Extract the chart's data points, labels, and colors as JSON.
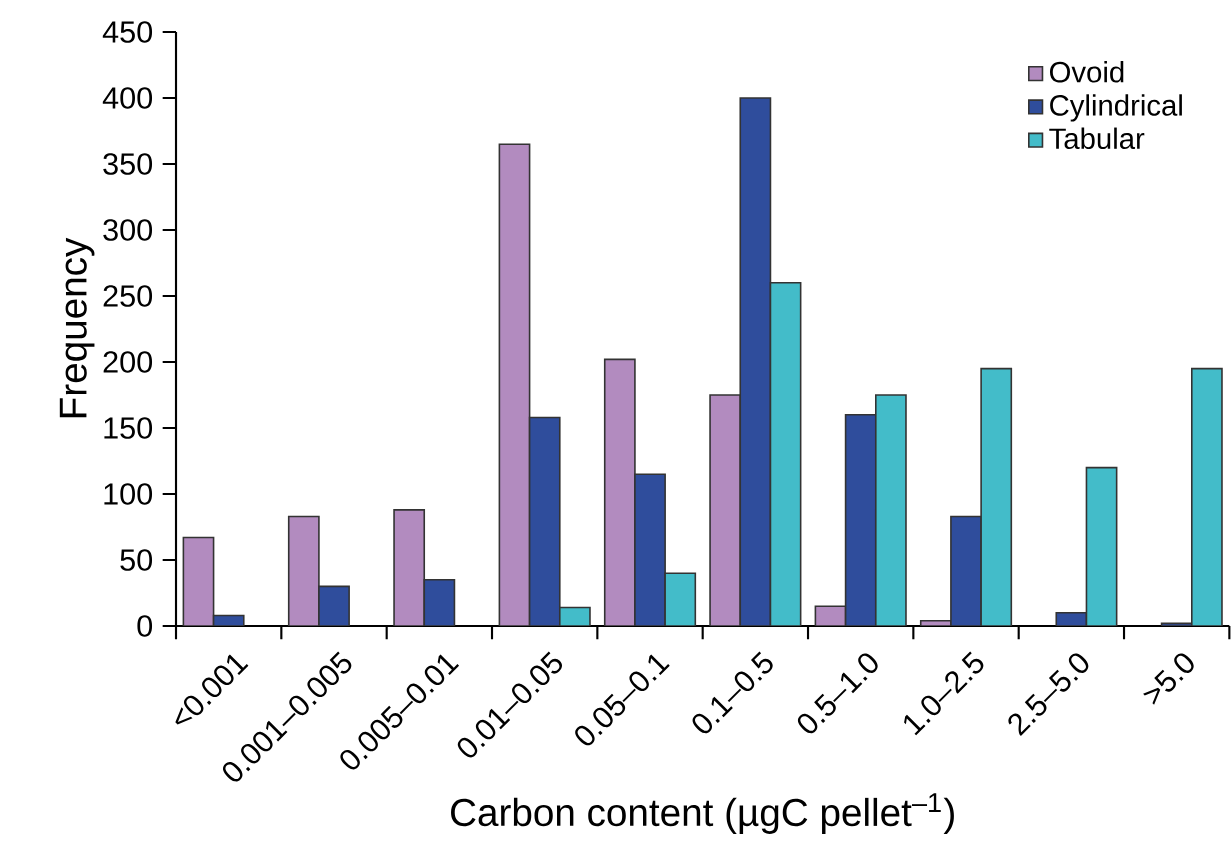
{
  "chart_data": {
    "type": "bar",
    "xlabel": "Carbon content (µgC pellet$^{–1}$)",
    "ylabel": "Frequency",
    "categories": [
      "<0.001",
      "0.001–0.005",
      "0.005–0.01",
      "0.01–0.05",
      "0.05–0.1",
      "0.1–0.5",
      "0.5–1.0",
      "1.0–2.5",
      "2.5–5.0",
      ">5.0"
    ],
    "series": [
      {
        "name": "Ovoid",
        "color": "#b28bbf",
        "values": [
          67,
          83,
          88,
          365,
          202,
          175,
          15,
          4,
          null,
          null
        ]
      },
      {
        "name": "Cylindrical",
        "color": "#2f4d9c",
        "values": [
          8,
          30,
          35,
          158,
          115,
          400,
          160,
          83,
          10,
          2
        ]
      },
      {
        "name": "Tabular",
        "color": "#43bcc9",
        "values": [
          null,
          null,
          null,
          14,
          40,
          260,
          175,
          195,
          120,
          195
        ]
      }
    ],
    "ylim": [
      0,
      450
    ],
    "yticks": [
      0,
      50,
      100,
      150,
      200,
      250,
      300,
      350,
      400,
      450
    ],
    "grid": false,
    "legend": "top right"
  }
}
